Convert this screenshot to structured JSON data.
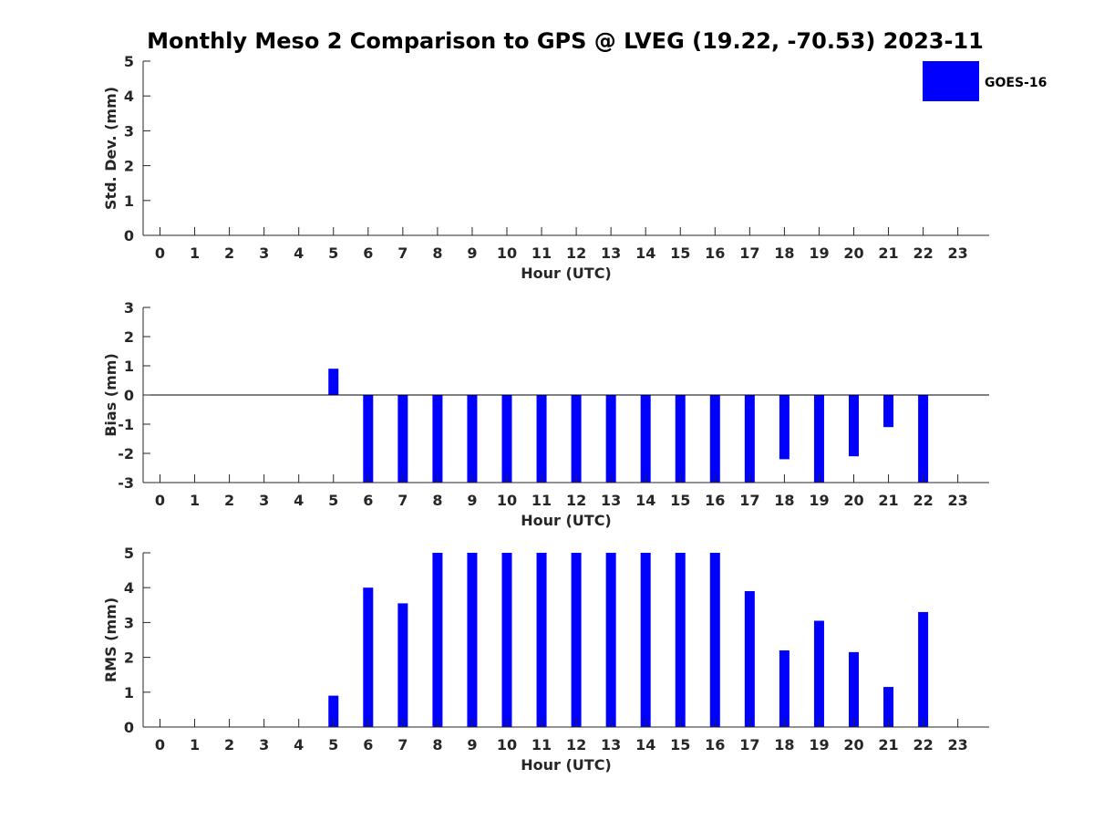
{
  "title": "Monthly Meso 2 Comparison to GPS @ LVEG (19.22, -70.53) 2023-11",
  "legend": {
    "label": "GOES-16",
    "color": "#0000ff",
    "placement": "top-right"
  },
  "chart_data": [
    {
      "type": "bar",
      "x": [
        0,
        1,
        2,
        3,
        4,
        5,
        6,
        7,
        8,
        9,
        10,
        11,
        12,
        13,
        14,
        15,
        16,
        17,
        18,
        19,
        20,
        21,
        22,
        23
      ],
      "xlabel": "Hour (UTC)",
      "ylabel": "Std. Dev. (mm)",
      "ylim": [
        0,
        5
      ],
      "yticks": [
        0,
        1,
        2,
        3,
        4,
        5
      ],
      "grid": false,
      "series": [
        {
          "name": "GOES-16",
          "color": "#0000ff",
          "values": [
            null,
            null,
            null,
            null,
            null,
            null,
            null,
            null,
            null,
            null,
            null,
            null,
            null,
            null,
            null,
            null,
            null,
            null,
            null,
            null,
            null,
            null,
            null,
            null
          ]
        }
      ]
    },
    {
      "type": "bar",
      "x": [
        0,
        1,
        2,
        3,
        4,
        5,
        6,
        7,
        8,
        9,
        10,
        11,
        12,
        13,
        14,
        15,
        16,
        17,
        18,
        19,
        20,
        21,
        22,
        23
      ],
      "xlabel": "Hour (UTC)",
      "ylabel": "Bias (mm)",
      "ylim": [
        -3,
        3
      ],
      "yticks": [
        -3,
        -2,
        -1,
        0,
        1,
        2,
        3
      ],
      "zero_line": true,
      "grid": false,
      "series": [
        {
          "name": "GOES-16",
          "color": "#0000ff",
          "values": [
            null,
            null,
            null,
            null,
            null,
            0.9,
            -3,
            -3,
            -3,
            -3,
            -3,
            -3,
            -3,
            -3,
            -3,
            -3,
            -3,
            -3,
            -2.2,
            -3,
            -2.1,
            -1.1,
            -3,
            null
          ]
        }
      ]
    },
    {
      "type": "bar",
      "x": [
        0,
        1,
        2,
        3,
        4,
        5,
        6,
        7,
        8,
        9,
        10,
        11,
        12,
        13,
        14,
        15,
        16,
        17,
        18,
        19,
        20,
        21,
        22,
        23
      ],
      "xlabel": "Hour (UTC)",
      "ylabel": "RMS (mm)",
      "ylim": [
        0,
        5
      ],
      "yticks": [
        0,
        1,
        2,
        3,
        4,
        5
      ],
      "grid": false,
      "series": [
        {
          "name": "GOES-16",
          "color": "#0000ff",
          "values": [
            null,
            null,
            null,
            null,
            null,
            0.9,
            4.0,
            3.55,
            5,
            5,
            5,
            5,
            5,
            5,
            5,
            5,
            5,
            3.9,
            2.2,
            3.05,
            2.15,
            1.15,
            3.3,
            null
          ]
        }
      ]
    }
  ]
}
